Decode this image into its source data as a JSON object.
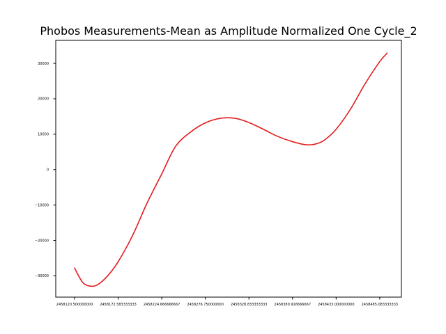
{
  "chart_data": {
    "type": "line",
    "title": "Phobos Measurements-Mean as Amplitude Normalized One Cycle_2",
    "xlabel": "",
    "ylabel": "",
    "grid": false,
    "legend": "none",
    "xlim": [
      2458098.0,
      2458511.0
    ],
    "ylim": [
      -36000,
      36500
    ],
    "x_ticks": [
      {
        "value": 2458120.5,
        "label": "2458120.500000000"
      },
      {
        "value": 2458172.583333333,
        "label": "2458172.583333333"
      },
      {
        "value": 2458224.666666667,
        "label": "2458224.666666667"
      },
      {
        "value": 2458276.75,
        "label": "2458276.750000000"
      },
      {
        "value": 2458328.833333333,
        "label": "2458328.833333333"
      },
      {
        "value": 2458380.916666667,
        "label": "2458380.916666667"
      },
      {
        "value": 2458433.0,
        "label": "2458433.000000000"
      },
      {
        "value": 2458485.083333333,
        "label": "2458485.083333333"
      }
    ],
    "y_ticks": [
      {
        "value": 30000,
        "label": "30000"
      },
      {
        "value": 20000,
        "label": "20000"
      },
      {
        "value": 10000,
        "label": "10000"
      },
      {
        "value": 0,
        "label": "0"
      },
      {
        "value": -10000,
        "label": "−10000"
      },
      {
        "value": -20000,
        "label": "−20000"
      },
      {
        "value": -30000,
        "label": "−30000"
      }
    ],
    "series": [
      {
        "color": "#e31a1c",
        "x": [
          2458120.5,
          2458130.0,
          2458139.0,
          2458148.0,
          2458160.0,
          2458172.6,
          2458190.0,
          2458207.0,
          2458224.7,
          2458241.0,
          2458259.0,
          2458276.75,
          2458295.0,
          2458312.0,
          2458328.8,
          2458346.0,
          2458363.0,
          2458380.9,
          2458398.0,
          2458411.0,
          2458420.5,
          2458433.0,
          2458450.0,
          2458467.0,
          2458485.1,
          2458494.0
        ],
        "y": [
          -27800,
          -31800,
          -32900,
          -32500,
          -30000,
          -26000,
          -18500,
          -9500,
          -1200,
          6500,
          10600,
          13200,
          14500,
          14500,
          13300,
          11400,
          9400,
          7900,
          7000,
          7400,
          8600,
          11400,
          17000,
          24000,
          30500,
          32900
        ]
      }
    ]
  }
}
